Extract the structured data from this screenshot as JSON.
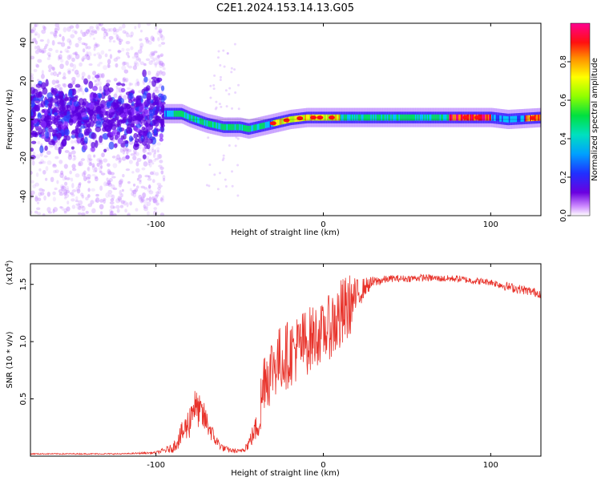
{
  "title": "C2E1.2024.153.14.13.G05",
  "chart_data": [
    {
      "type": "heatmap",
      "xlabel": "Height of straight line (km)",
      "ylabel": "Frequency (Hz)",
      "xlim": [
        -175,
        130
      ],
      "ylim": [
        -50,
        50
      ],
      "xticks": [
        -100,
        0,
        100
      ],
      "yticks": [
        -40,
        -20,
        0,
        20,
        40
      ],
      "colorbar": {
        "label": "Normalized spectral amplitude",
        "range": [
          0.0,
          1.0
        ],
        "ticks": [
          "0.0",
          "0.2",
          "0.4",
          "0.6",
          "0.8"
        ],
        "colors": [
          "#ffffff",
          "#cc88ff",
          "#6a00e0",
          "#2030ff",
          "#00c8ff",
          "#00e060",
          "#b0ff00",
          "#ffff00",
          "#ff8c00",
          "#ff0000",
          "#ff0080"
        ]
      },
      "ridge": {
        "x": [
          -175,
          -150,
          -120,
          -100,
          -95,
          -85,
          -80,
          -70,
          -60,
          -50,
          -45,
          -40,
          -30,
          -20,
          -10,
          0,
          20,
          40,
          60,
          80,
          100,
          110,
          130
        ],
        "y": [
          2,
          3,
          2,
          1,
          3,
          3,
          1,
          -2,
          -4,
          -4,
          -5,
          -4,
          -2,
          0,
          1,
          1,
          1,
          1,
          1,
          1,
          1,
          0,
          1
        ]
      },
      "bright_segments": [
        {
          "x": [
            -90,
            -35
          ],
          "amplitude": 0.5
        },
        {
          "x": [
            -30,
            10
          ],
          "amplitude": 0.7
        },
        {
          "x": [
            75,
            100
          ],
          "amplitude": 0.95
        },
        {
          "x": [
            120,
            130
          ],
          "amplitude": 0.85
        }
      ]
    },
    {
      "type": "line",
      "xlabel": "Height of straight line (km)",
      "ylabel": "SNR (10 * v/v)",
      "yscale_label": "(x10",
      "yscale_exp": "4",
      "xlim": [
        -175,
        130
      ],
      "ylim": [
        0,
        1.68
      ],
      "xticks": [
        -100,
        0,
        100
      ],
      "yticks": [
        "0.5",
        "1.0",
        "1.5"
      ],
      "ytick_values": [
        0.5,
        1.0,
        1.5
      ],
      "color": "#e8322a",
      "series": [
        {
          "x": [
            -175,
            -120,
            -100,
            -90,
            -85,
            -80,
            -78,
            -75,
            -72,
            -70,
            -68,
            -65,
            -60,
            -55,
            -50,
            -45,
            -40,
            -37,
            -35,
            -33,
            -30,
            -25,
            -20,
            -15,
            -10,
            -5,
            0,
            5,
            10,
            15,
            20,
            25,
            30,
            40,
            50,
            60,
            70,
            80,
            90,
            100,
            110,
            120,
            130
          ],
          "y": [
            0.02,
            0.02,
            0.03,
            0.07,
            0.18,
            0.3,
            0.45,
            0.4,
            0.35,
            0.3,
            0.25,
            0.15,
            0.07,
            0.05,
            0.04,
            0.1,
            0.25,
            0.45,
            0.75,
            0.7,
            0.8,
            0.85,
            0.9,
            0.95,
            1.0,
            1.05,
            1.08,
            1.15,
            1.2,
            1.3,
            1.4,
            1.48,
            1.52,
            1.55,
            1.55,
            1.56,
            1.55,
            1.55,
            1.53,
            1.52,
            1.48,
            1.45,
            1.42
          ],
          "noise": [
            0.005,
            0.005,
            0.01,
            0.04,
            0.1,
            0.15,
            0.18,
            0.15,
            0.15,
            0.12,
            0.1,
            0.06,
            0.03,
            0.02,
            0.02,
            0.05,
            0.12,
            0.35,
            0.3,
            0.3,
            0.3,
            0.3,
            0.3,
            0.3,
            0.3,
            0.28,
            0.25,
            0.3,
            0.35,
            0.3,
            0.15,
            0.08,
            0.05,
            0.03,
            0.03,
            0.03,
            0.03,
            0.03,
            0.03,
            0.03,
            0.04,
            0.04,
            0.04
          ]
        }
      ]
    }
  ]
}
